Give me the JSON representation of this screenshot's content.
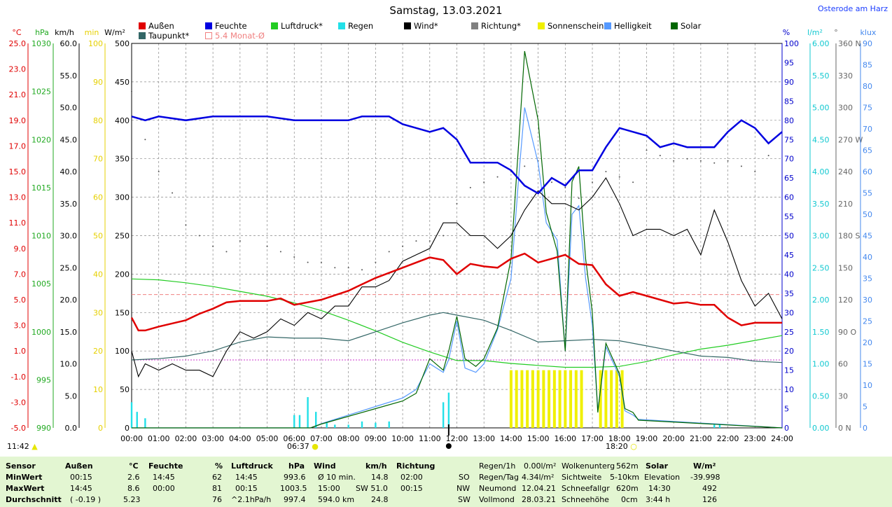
{
  "title": "Samstag, 13.03.2021",
  "location": "Osterode am Harz",
  "legend": [
    {
      "label": "Außen",
      "color": "#e00000"
    },
    {
      "label": "Feuchte",
      "color": "#0000e0"
    },
    {
      "label": "Luftdruck*",
      "color": "#22cc22"
    },
    {
      "label": "Regen",
      "color": "#22e0e8"
    },
    {
      "label": "Wind*",
      "color": "#000000"
    },
    {
      "label": "Richtung*",
      "color": "#808080"
    },
    {
      "label": "Sonnenschein",
      "color": "#f0f000"
    },
    {
      "label": "Helligkeit",
      "color": "#5599ff"
    },
    {
      "label": "Solar",
      "color": "#006600"
    },
    {
      "label": "Taupunkt*",
      "color": "#336666"
    },
    {
      "label": "5.4 Monat-Ø",
      "color": "#f08080"
    }
  ],
  "axes_units": {
    "temp": "°C",
    "pressure": "hPa",
    "wind": "km/h",
    "sun_min": "min",
    "solar": "W/m²",
    "humidity": "%",
    "rain": "l/m²",
    "direction": "°",
    "lux": "klux"
  },
  "axes": {
    "temp": [
      "25.0",
      "23.0",
      "21.0",
      "19.0",
      "17.0",
      "15.0",
      "13.0",
      "11.0",
      "9.0",
      "7.0",
      "5.0",
      "3.0",
      "1.0",
      "-1.0",
      "-3.0",
      "-5.0"
    ],
    "pressure": [
      "1030",
      "1025",
      "1020",
      "1015",
      "1010",
      "1005",
      "1000",
      "995",
      "990"
    ],
    "wind": [
      "60.0",
      "55.0",
      "50.0",
      "45.0",
      "40.0",
      "35.0",
      "30.0",
      "25.0",
      "20.0",
      "15.0",
      "10.0",
      "5.0",
      "0.0"
    ],
    "sun_min": [
      "100",
      "90",
      "80",
      "70",
      "60",
      "50",
      "40",
      "30",
      "20",
      "10",
      "0"
    ],
    "solar": [
      "500",
      "450",
      "400",
      "350",
      "300",
      "250",
      "200",
      "150",
      "100",
      "50",
      "0"
    ],
    "humidity": [
      "100",
      "95",
      "90",
      "85",
      "80",
      "75",
      "70",
      "65",
      "60",
      "55",
      "50",
      "45",
      "40",
      "35",
      "30",
      "25",
      "20",
      "15",
      "10",
      "5",
      "0"
    ],
    "rain": [
      "6.00",
      "5.50",
      "5.00",
      "4.50",
      "4.00",
      "3.50",
      "3.00",
      "2.50",
      "2.00",
      "1.50",
      "1.00",
      "0.50",
      "0.00"
    ],
    "direction": [
      "360 N",
      "330",
      "300",
      "270 W",
      "240",
      "210",
      "180 S",
      "150",
      "120",
      "90 O",
      "60",
      "30",
      "0 N"
    ],
    "lux": [
      "90",
      "85",
      "80",
      "75",
      "70",
      "65",
      "60",
      "55",
      "50",
      "45",
      "40",
      "35",
      "30",
      "25",
      "20",
      "15",
      "10",
      "5",
      "0"
    ],
    "time": [
      "00:00",
      "01:00",
      "02:00",
      "03:00",
      "04:00",
      "05:00",
      "06:00",
      "07:00",
      "08:00",
      "09:00",
      "10:00",
      "11:00",
      "12:00",
      "13:00",
      "14:00",
      "15:00",
      "16:00",
      "17:00",
      "18:00",
      "19:00",
      "20:00",
      "21:00",
      "22:00",
      "23:00",
      "24:00"
    ]
  },
  "markers": {
    "now": "11:42",
    "sunrise": "06:37",
    "sunset": "18:20"
  },
  "chart_data": {
    "type": "line",
    "x_unit": "hours",
    "x_range": [
      0,
      24
    ],
    "series": [
      {
        "name": "Außen",
        "unit": "°C",
        "x": [
          0,
          0.25,
          0.5,
          1,
          2,
          2.5,
          3,
          3.5,
          4,
          5,
          5.5,
          6,
          7,
          8,
          8.5,
          9,
          10,
          10.5,
          11,
          11.5,
          12,
          12.5,
          13,
          13.5,
          14,
          14.5,
          15,
          15.5,
          16,
          16.5,
          17,
          17.5,
          18,
          18.5,
          19,
          20,
          20.5,
          21,
          21.5,
          22,
          22.5,
          23,
          23.5,
          24
        ],
        "y": [
          3.6,
          2.6,
          2.6,
          2.9,
          3.4,
          3.9,
          4.3,
          4.8,
          4.9,
          4.9,
          5.1,
          4.6,
          5.0,
          5.7,
          6.2,
          6.7,
          7.5,
          7.9,
          8.3,
          8.1,
          7.0,
          7.8,
          7.6,
          7.5,
          8.2,
          8.6,
          7.9,
          8.2,
          8.5,
          7.8,
          7.7,
          6.2,
          5.3,
          5.6,
          5.3,
          4.7,
          4.8,
          4.6,
          4.6,
          3.6,
          3.0,
          3.2,
          3.2,
          3.2
        ]
      },
      {
        "name": "Feuchte",
        "unit": "%",
        "x": [
          0,
          0.5,
          1,
          2,
          3,
          4,
          5,
          6,
          7,
          8,
          8.5,
          9,
          9.5,
          10,
          10.5,
          11,
          11.5,
          12,
          12.5,
          13,
          13.5,
          14,
          14.5,
          15,
          15.5,
          16,
          16.5,
          17,
          17.5,
          18,
          18.5,
          19,
          19.5,
          20,
          20.5,
          21,
          21.5,
          22,
          22.5,
          23,
          23.5,
          24
        ],
        "y": [
          81,
          80,
          81,
          80,
          81,
          81,
          81,
          80,
          80,
          80,
          81,
          81,
          81,
          79,
          78,
          77,
          78,
          75,
          69,
          69,
          69,
          67,
          63,
          61,
          65,
          63,
          67,
          67,
          73,
          78,
          77,
          76,
          73,
          74,
          73,
          73,
          73,
          77,
          80,
          78,
          74,
          77
        ]
      },
      {
        "name": "Luftdruck*",
        "unit": "hPa",
        "x": [
          0,
          1,
          2,
          3,
          4,
          5,
          6,
          7,
          8,
          9,
          10,
          11,
          12,
          13,
          14,
          15,
          16,
          17,
          18,
          19,
          20,
          21,
          22,
          23,
          24
        ],
        "y": [
          1005.5,
          1005.4,
          1005.1,
          1004.7,
          1004.2,
          1003.7,
          1003,
          1002.2,
          1001.2,
          1000.1,
          998.9,
          997.9,
          997.0,
          997.0,
          996.7,
          996.5,
          996.3,
          996.3,
          996.4,
          996.9,
          997.6,
          998.2,
          998.6,
          999.1,
          999.6
        ]
      },
      {
        "name": "Taupunkt*",
        "unit": "°C",
        "x": [
          0,
          1,
          2,
          3,
          4,
          5,
          6,
          7,
          8,
          9,
          10,
          11,
          11.5,
          12,
          13,
          14,
          15,
          16,
          17,
          18,
          19,
          20,
          21,
          22,
          23,
          24
        ],
        "y": [
          0.3,
          0.4,
          0.6,
          1.0,
          1.7,
          2.1,
          2.0,
          2.0,
          1.8,
          2.5,
          3.2,
          3.8,
          4.0,
          3.8,
          3.4,
          2.6,
          1.7,
          1.8,
          1.9,
          1.8,
          1.4,
          1.0,
          0.6,
          0.5,
          0.2,
          0.1
        ]
      },
      {
        "name": "Wind*",
        "unit": "km/h",
        "x": [
          0,
          0.25,
          0.5,
          1,
          1.5,
          2,
          2.5,
          3,
          3.5,
          4,
          4.5,
          5,
          5.5,
          6,
          6.5,
          7,
          7.5,
          8,
          8.5,
          9,
          9.5,
          10,
          10.5,
          11,
          11.5,
          12,
          12.5,
          13,
          13.5,
          14,
          14.5,
          15,
          15.5,
          16,
          16.5,
          17,
          17.5,
          18,
          18.5,
          19,
          19.5,
          20,
          20.5,
          21,
          21.5,
          22,
          22.5,
          23,
          23.5,
          24
        ],
        "y": [
          12,
          8,
          10,
          9,
          10,
          9,
          9,
          8,
          12,
          15,
          14,
          15,
          17,
          16,
          18,
          17,
          19,
          19,
          22,
          22,
          23,
          26,
          27,
          28,
          32,
          32,
          30,
          30,
          28,
          30,
          34,
          37,
          35,
          35,
          34,
          36,
          39,
          35,
          30,
          31,
          31,
          30,
          31,
          27,
          34,
          29,
          23,
          19,
          21,
          17
        ]
      },
      {
        "name": "Solar",
        "unit": "W/m²",
        "x": [
          0,
          6.6,
          7,
          8,
          9,
          10,
          10.5,
          11,
          11.5,
          11.7,
          12,
          12.3,
          12.7,
          13,
          13.5,
          14,
          14.3,
          14.5,
          15,
          15.3,
          15.7,
          16,
          16.25,
          16.5,
          16.75,
          17,
          17.2,
          17.5,
          18,
          18.2,
          18.5,
          18.7,
          24
        ],
        "y": [
          0,
          0,
          5,
          15,
          25,
          35,
          45,
          90,
          75,
          100,
          145,
          90,
          80,
          90,
          130,
          220,
          380,
          490,
          400,
          280,
          230,
          100,
          320,
          340,
          220,
          150,
          20,
          110,
          70,
          25,
          20,
          10,
          0
        ]
      },
      {
        "name": "Helligkeit",
        "unit": "klux",
        "x": [
          0,
          6.6,
          7,
          8,
          9,
          10,
          10.5,
          11,
          11.5,
          11.7,
          12,
          12.3,
          12.7,
          13,
          13.5,
          14,
          14.3,
          14.5,
          15,
          15.3,
          15.7,
          16,
          16.25,
          16.5,
          16.75,
          17,
          17.2,
          17.5,
          18,
          18.2,
          18.5,
          18.7,
          24
        ],
        "y": [
          0,
          0,
          1,
          3,
          5,
          7,
          9,
          15,
          13,
          16,
          25,
          14,
          13,
          15,
          23,
          35,
          60,
          75,
          62,
          48,
          44,
          18,
          50,
          52,
          35,
          24,
          4,
          19,
          12,
          4,
          3,
          2,
          0
        ]
      },
      {
        "name": "Sonnenschein",
        "unit": "min",
        "x": [
          14.0,
          14.2,
          14.4,
          14.6,
          14.8,
          15.0,
          15.2,
          15.4,
          15.6,
          15.8,
          16.0,
          16.2,
          16.4,
          16.6,
          17.3,
          17.5,
          17.7,
          17.9,
          18.1
        ],
        "y": [
          15,
          15,
          15,
          15,
          15,
          15,
          15,
          15,
          15,
          15,
          15,
          15,
          15,
          15,
          15,
          15,
          15,
          15,
          15
        ]
      },
      {
        "name": "Regen",
        "unit": "l/m²",
        "x": [
          0,
          0.2,
          0.5,
          6.0,
          6.2,
          6.5,
          6.8,
          7.2,
          7.5,
          8.0,
          8.5,
          9.0,
          9.5,
          11.5,
          11.7,
          21.5,
          21.7
        ],
        "y": [
          0.4,
          0.25,
          0.15,
          0.2,
          0.2,
          0.48,
          0.25,
          0.08,
          0.05,
          0.05,
          0.1,
          0.08,
          0.1,
          0.4,
          0.55,
          0.05,
          0.05
        ]
      },
      {
        "name": "Richtung*",
        "unit": "°",
        "x": [
          0,
          0.5,
          1,
          1.5,
          2,
          2.5,
          3,
          3.5,
          4,
          5,
          5.5,
          6,
          6.5,
          7,
          7.5,
          8,
          8.5,
          9,
          9.5,
          10,
          10.5,
          11,
          11.5,
          12,
          12.5,
          13,
          13.5,
          14,
          14.5,
          15,
          15.5,
          16,
          16.5,
          17,
          17.5,
          18,
          18.5,
          19,
          19.5,
          20,
          20.5,
          21,
          21.5,
          22,
          22.5,
          23,
          23.5
        ],
        "y": [
          315,
          270,
          240,
          220,
          190,
          180,
          170,
          165,
          175,
          170,
          165,
          160,
          155,
          155,
          150,
          150,
          148,
          155,
          165,
          170,
          175,
          175,
          180,
          210,
          225,
          230,
          235,
          240,
          245,
          250,
          230,
          225,
          215,
          230,
          240,
          235,
          230,
          260,
          255,
          250,
          252,
          250,
          248,
          250,
          245,
          240,
          255
        ]
      }
    ],
    "reference_line": {
      "name": "5.4 Monat-Ø",
      "unit": "°C",
      "value": 5.4
    },
    "dewpoint_min_line": {
      "unit": "°C",
      "value": 0.3
    }
  },
  "stats": {
    "headers": {
      "sensor": "Sensor",
      "aussen": "Außen",
      "aussen_unit": "°C",
      "feuchte": "Feuchte",
      "feuchte_unit": "%",
      "luftdruck": "Luftdruck",
      "luftdruck_unit": "hPa",
      "wind": "Wind",
      "wind_unit": "km/h",
      "richtung": "Richtung"
    },
    "row_labels": [
      "MinWert",
      "MaxWert",
      "Durchschnitt"
    ],
    "aussen": [
      [
        "00:15",
        "2.6"
      ],
      [
        "14:45",
        "8.6"
      ],
      [
        "( -0.19 )",
        "5.23"
      ]
    ],
    "feuchte": [
      [
        "14:45",
        "62"
      ],
      [
        "00:00",
        "81"
      ],
      [
        "",
        "76"
      ]
    ],
    "luftdruck": [
      [
        "14:45",
        "993.6"
      ],
      [
        "00:15",
        "1003.5"
      ],
      [
        "^2.1hPa/h",
        "997.4"
      ]
    ],
    "wind": [
      [
        "Ø 10 min.",
        "14.8"
      ],
      [
        "15:00",
        "SW 51.0"
      ],
      [
        "594.0 km",
        "24.8"
      ]
    ],
    "richtung": [
      [
        "02:00",
        "SO"
      ],
      [
        "00:15",
        "NW"
      ],
      [
        "",
        "SW"
      ]
    ],
    "regen": [
      [
        "Regen/1h",
        "0.00l/m²"
      ],
      [
        "Regen/Tag",
        "4.34l/m²"
      ],
      [
        "Neumond",
        "12.04.21"
      ],
      [
        "Vollmond",
        "28.03.21"
      ]
    ],
    "wolken": [
      [
        "Wolkenunterg",
        "562m"
      ],
      [
        "Sichtweite",
        "5-10km"
      ],
      [
        "Schneefallgr",
        "620m"
      ],
      [
        "Schneehöhe",
        "0cm"
      ]
    ],
    "solar_header": {
      "label": "Solar",
      "unit": "W/m²"
    },
    "solar": [
      [
        "Elevation",
        "-39.998"
      ],
      [
        "14:30",
        "492"
      ],
      [
        "3:44 h",
        "126"
      ]
    ]
  }
}
